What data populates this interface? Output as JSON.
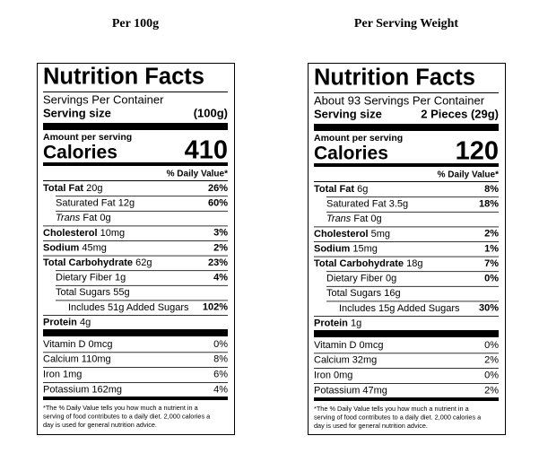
{
  "labels": [
    {
      "heading": "Per 100g",
      "title": "Nutrition Facts",
      "servings": "Servings Per Container",
      "serving_size_label": "Serving size",
      "serving_size": "(100g)",
      "amount_label": "Amount per serving",
      "calories_label": "Calories",
      "calories": "410",
      "dv_header": "% Daily Value*",
      "nutrients": [
        {
          "label": "Total Fat",
          "amount": "20g",
          "dv": "26%"
        },
        {
          "label": "Saturated Fat",
          "amount": "12g",
          "dv": "60%"
        },
        {
          "label": "Trans",
          "amount": "Fat 0g"
        },
        {
          "label": "Cholesterol",
          "amount": "10mg",
          "dv": "3%"
        },
        {
          "label": "Sodium",
          "amount": "45mg",
          "dv": "2%"
        },
        {
          "label": "Total Carbohydrate",
          "amount": "62g",
          "dv": "23%"
        },
        {
          "label": "Dietary Fiber",
          "amount": "1g",
          "dv": "4%"
        },
        {
          "label": "Total Sugars",
          "amount": "55g"
        },
        {
          "label": "Includes 51g Added Sugars",
          "dv": "102%"
        },
        {
          "label": "Protein",
          "amount": "4g"
        }
      ],
      "vitamins": [
        {
          "label": "Vitamin D 0mcg",
          "dv": "0%"
        },
        {
          "label": "Calcium 110mg",
          "dv": "8%"
        },
        {
          "label": "Iron 1mg",
          "dv": "6%"
        },
        {
          "label": "Potassium 162mg",
          "dv": "4%"
        }
      ],
      "footnote": [
        "*The % Daily Value tells you how much a nutrient in a",
        "serving of food contributes to a daily diet. 2,000 calories a",
        "day is used for general nutrition advice."
      ]
    },
    {
      "heading": "Per Serving Weight",
      "title": "Nutrition Facts",
      "servings": "About 93 Servings Per Container",
      "serving_size_label": "Serving size",
      "serving_size": "2 Pieces (29g)",
      "amount_label": "Amount per serving",
      "calories_label": "Calories",
      "calories": "120",
      "dv_header": "% Daily Value*",
      "nutrients": [
        {
          "label": "Total Fat",
          "amount": "6g",
          "dv": "8%"
        },
        {
          "label": "Saturated Fat",
          "amount": "3.5g",
          "dv": "18%"
        },
        {
          "label": "Trans",
          "amount": "Fat 0g"
        },
        {
          "label": "Cholesterol",
          "amount": "5mg",
          "dv": "2%"
        },
        {
          "label": "Sodium",
          "amount": "15mg",
          "dv": "1%"
        },
        {
          "label": "Total Carbohydrate",
          "amount": "18g",
          "dv": "7%"
        },
        {
          "label": "Dietary Fiber",
          "amount": "0g",
          "dv": "0%"
        },
        {
          "label": "Total Sugars",
          "amount": "16g"
        },
        {
          "label": "Includes 15g Added Sugars",
          "dv": "30%"
        },
        {
          "label": "Protein",
          "amount": "1g"
        }
      ],
      "vitamins": [
        {
          "label": "Vitamin D 0mcg",
          "dv": "0%"
        },
        {
          "label": "Calcium 32mg",
          "dv": "2%"
        },
        {
          "label": "Iron 0mg",
          "dv": "0%"
        },
        {
          "label": "Potassium 47mg",
          "dv": "2%"
        }
      ],
      "footnote": [
        "*The % Daily Value tells you how much a nutrient in a",
        "serving of food contributes to a daily diet. 2,000 calories a",
        "day is used for general nutrition advice."
      ]
    }
  ]
}
